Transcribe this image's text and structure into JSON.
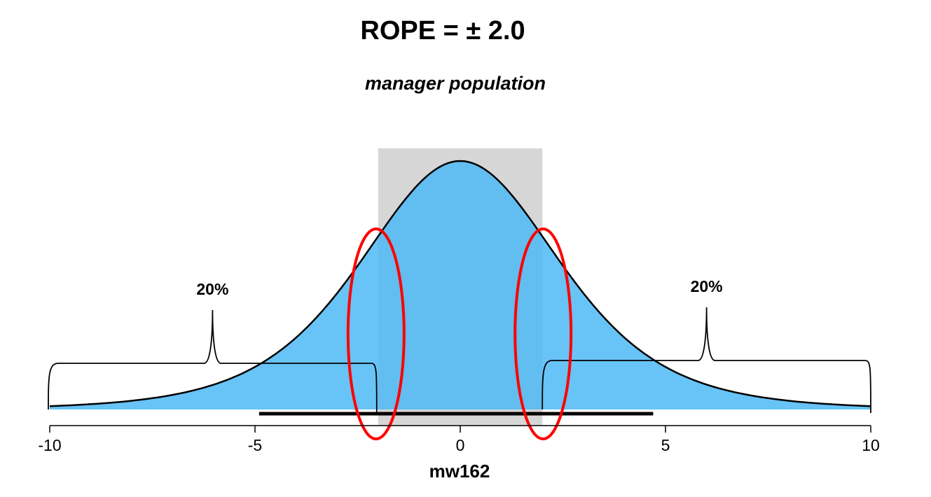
{
  "chart_data": {
    "type": "density",
    "title": "ROPE = ± 2.0",
    "subtitle": "manager population",
    "xlabel": "mw162",
    "xlim": [
      -10,
      10
    ],
    "xticks": [
      -10,
      -5,
      0,
      5,
      10
    ],
    "rope": [
      -2,
      2
    ],
    "interval": [
      -4.9,
      4.7
    ],
    "annotations": [
      "20%",
      "20%"
    ],
    "color": "#4db8f5",
    "rope_color": "#c8c8c8",
    "highlight_color": "#ff0000"
  }
}
